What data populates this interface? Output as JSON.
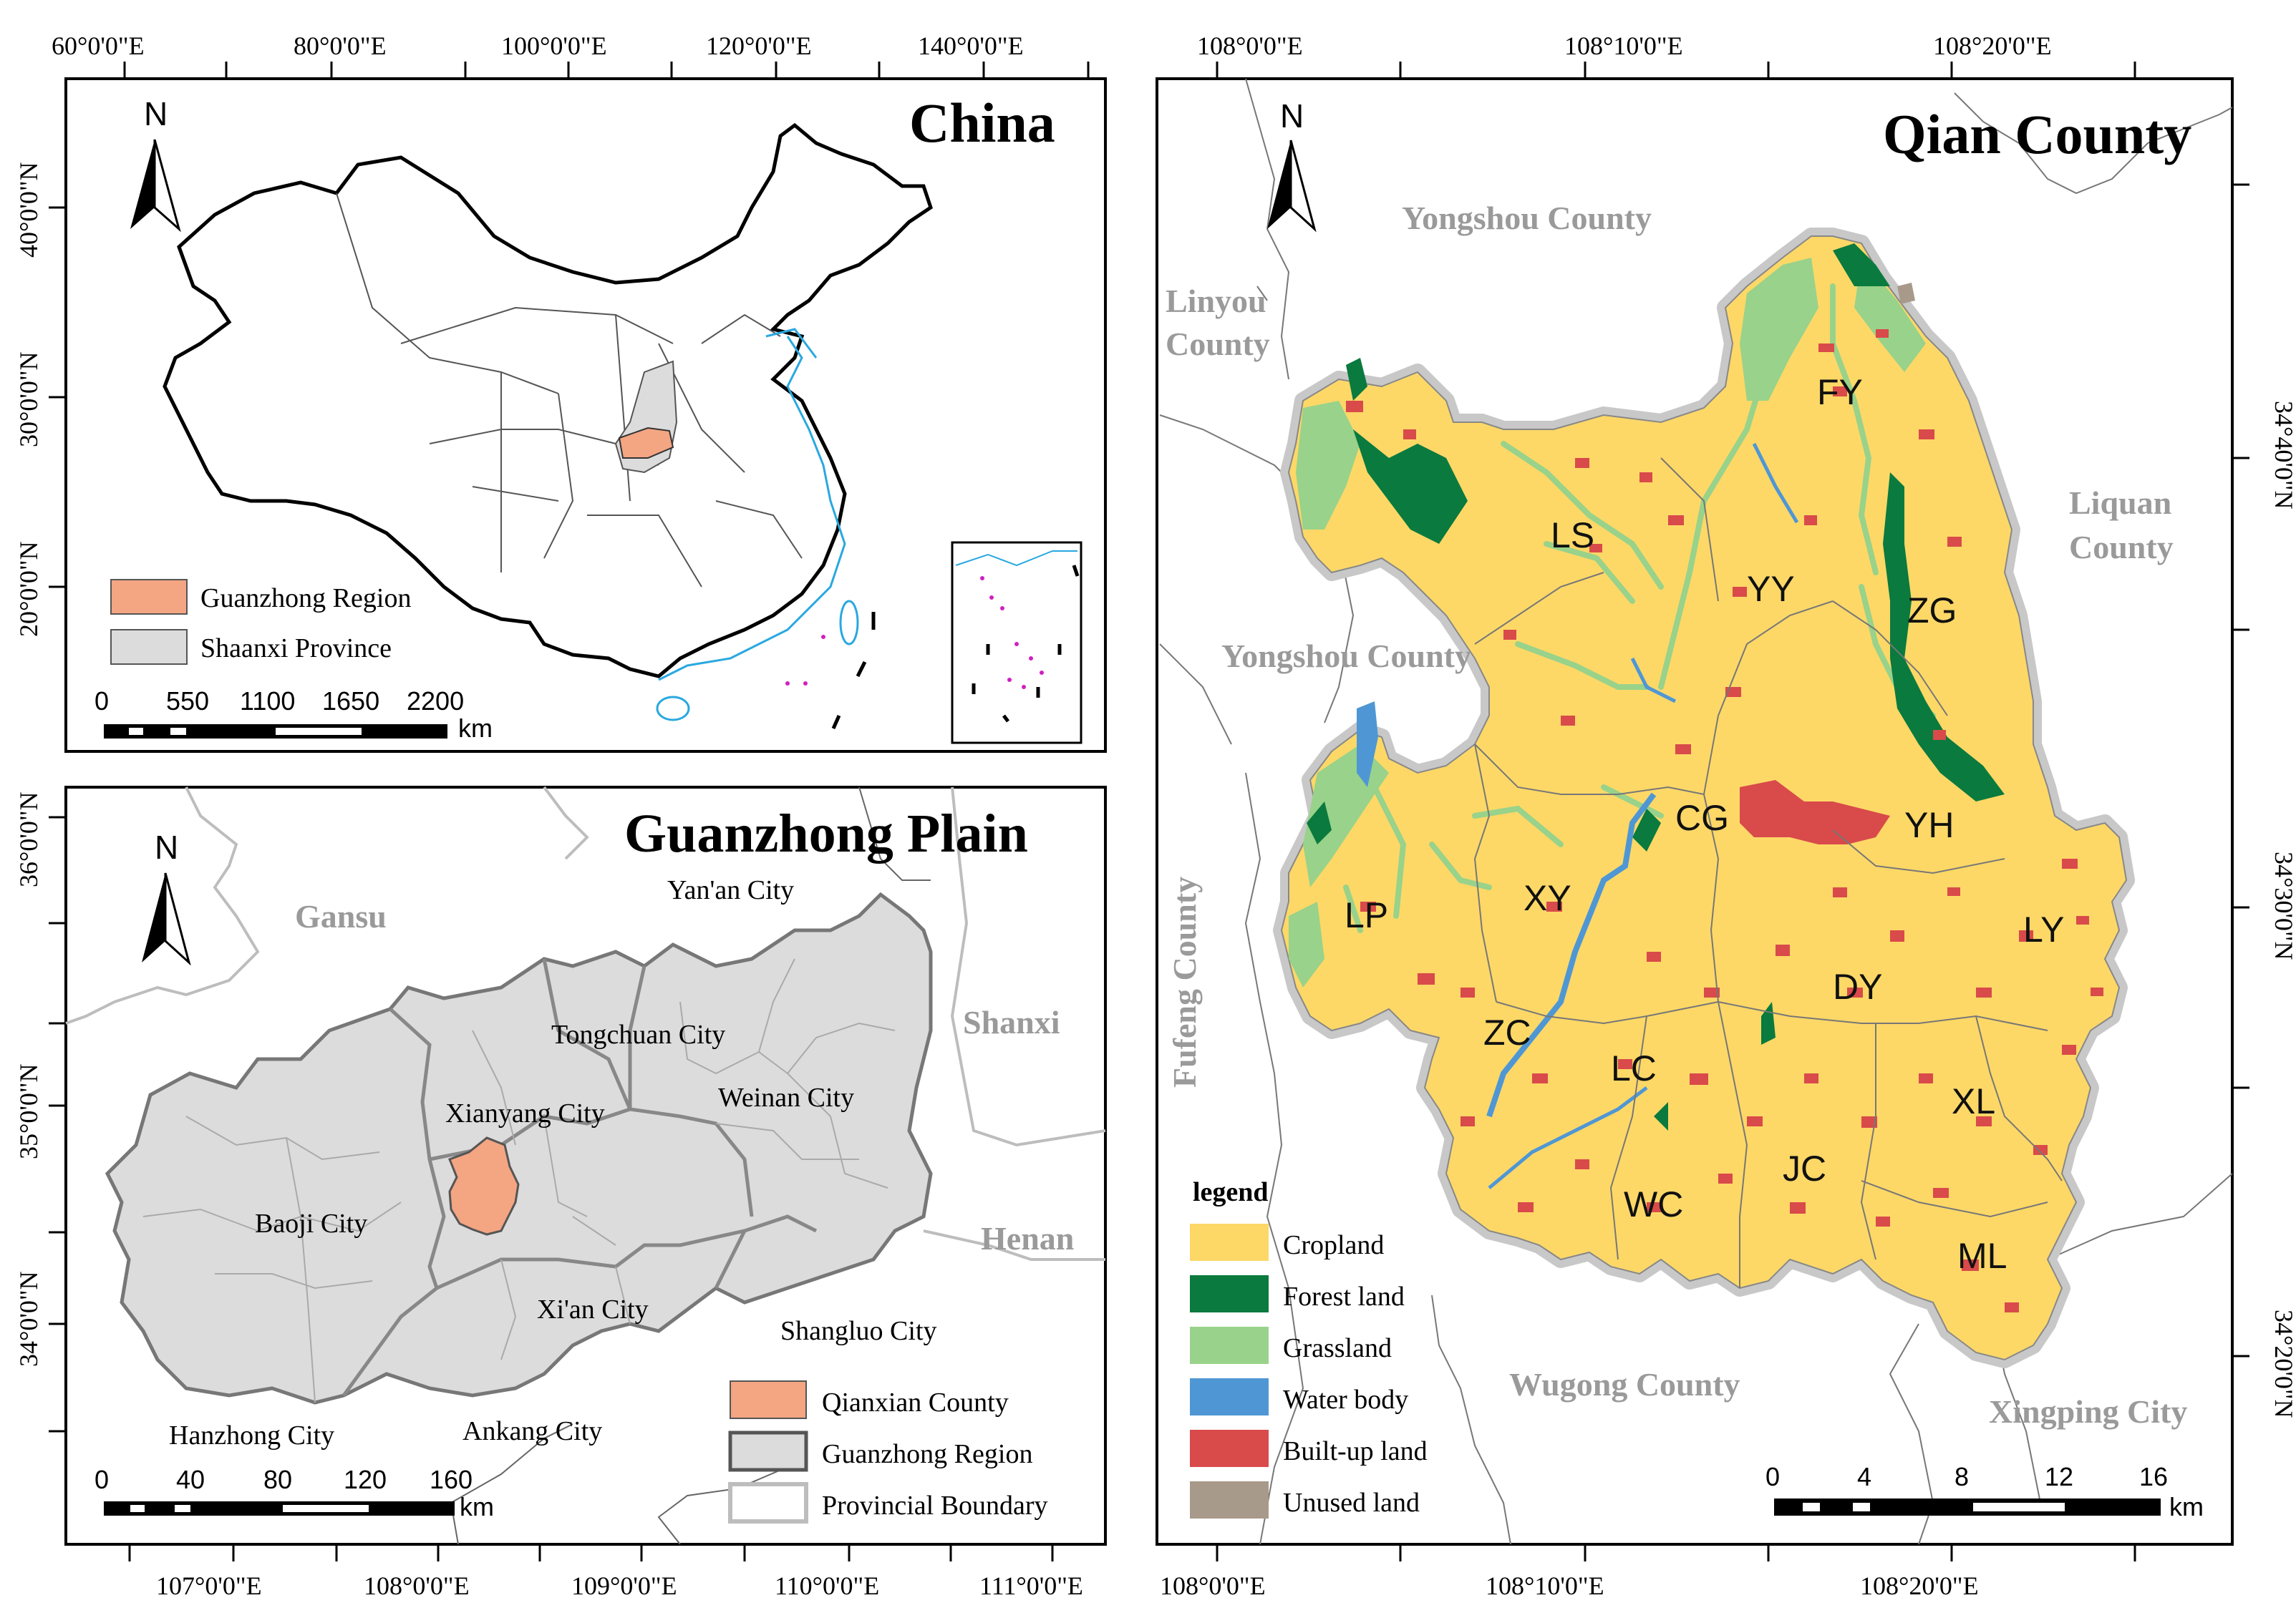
{
  "china_panel": {
    "title": "China",
    "top_ticks": [
      "60°0'0\"E",
      "80°0'0\"E",
      "100°0'0\"E",
      "120°0'0\"E",
      "140°0'0\"E"
    ],
    "left_ticks": [
      "40°0'0\"N",
      "30°0'0\"N",
      "20°0'0\"N"
    ],
    "legend": [
      {
        "label": "Guanzhong Region",
        "color": "#f4a582"
      },
      {
        "label": "Shaanxi Province",
        "color": "#dcdcdc"
      }
    ],
    "scale": {
      "values": [
        "0",
        "550",
        "1100",
        "1650",
        "2200"
      ],
      "unit": "km"
    },
    "north": "N"
  },
  "guanzhong_panel": {
    "title": "Guanzhong Plain",
    "bottom_ticks": [
      "107°0'0\"E",
      "108°0'0\"E",
      "109°0'0\"E",
      "110°0'0\"E",
      "111°0'0\"E"
    ],
    "left_ticks": [
      "36°0'0\"N",
      "35°0'0\"N",
      "34°0'0\"N"
    ],
    "regions": [
      "Gansu",
      "Shanxi",
      "Henan"
    ],
    "cities": [
      "Yan'an City",
      "Tongchuan City",
      "Xianyang City",
      "Weinan City",
      "Baoji City",
      "Xi'an City",
      "Shangluo City",
      "Hanzhong City",
      "Ankang City"
    ],
    "legend": [
      {
        "label": "Qianxian County",
        "color": "#f4a582"
      },
      {
        "label": "Guanzhong Region",
        "color": "#dcdcdc"
      },
      {
        "label": "Provincial Boundary",
        "color": "#bdbdbd"
      }
    ],
    "scale": {
      "values": [
        "0",
        "40",
        "80",
        "120",
        "160"
      ],
      "unit": "km"
    },
    "north": "N"
  },
  "qian_panel": {
    "title": "Qian County",
    "top_ticks": [
      "108°0'0\"E",
      "108°10'0\"E",
      "108°20'0\"E"
    ],
    "bottom_ticks": [
      "108°0'0\"E",
      "108°10'0\"E",
      "108°20'0\"E"
    ],
    "right_ticks": [
      "34°40'0\"N",
      "34°30'0\"N",
      "34°20'0\"N"
    ],
    "neighbors": {
      "yongshou_top": "Yongshou County",
      "linyou_1": "Linyou",
      "linyou_2": "County",
      "yongshou_mid": "Yongshou County",
      "fufeng": "Fufeng County",
      "liquan_1": "Liquan",
      "liquan_2": "County",
      "wugong": "Wugong County",
      "xingping": "Xingping City"
    },
    "towns": [
      "FY",
      "LS",
      "YY",
      "ZG",
      "CG",
      "YH",
      "LP",
      "XY",
      "LY",
      "DY",
      "ZC",
      "LC",
      "XL",
      "JC",
      "WC",
      "ML"
    ],
    "legend_title": "legend",
    "legend": [
      {
        "label": "Cropland",
        "color": "#fdd867"
      },
      {
        "label": "Forest land",
        "color": "#0a7a3e"
      },
      {
        "label": "Grassland",
        "color": "#99d28a"
      },
      {
        "label": "Water body",
        "color": "#4f97d4"
      },
      {
        "label": "Built-up land",
        "color": "#d94a4a"
      },
      {
        "label": "Unused land",
        "color": "#a89a8a"
      }
    ],
    "scale": {
      "values": [
        "0",
        "4",
        "8",
        "12",
        "16"
      ],
      "unit": "km"
    },
    "north": "N"
  }
}
